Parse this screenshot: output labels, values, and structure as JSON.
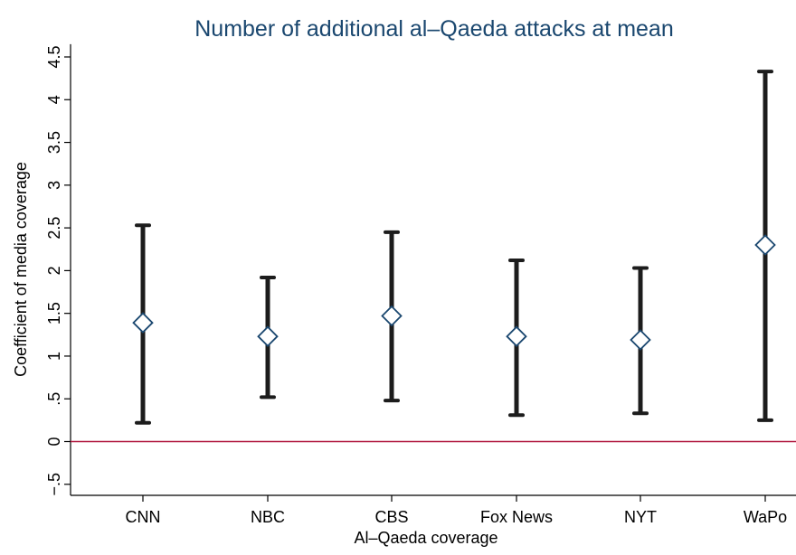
{
  "chart_data": {
    "type": "scatter",
    "title": "Number of additional al–Qaeda attacks at mean",
    "xlabel": "Al–Qaeda coverage",
    "ylabel": "Coefficient of media coverage",
    "categories": [
      "CNN",
      "NBC",
      "CBS",
      "Fox News",
      "NYT",
      "WaPo"
    ],
    "series": [
      {
        "estimate": [
          1.39,
          1.23,
          1.47,
          1.23,
          1.19,
          2.3
        ],
        "ci_lower": [
          0.22,
          0.52,
          0.48,
          0.31,
          0.33,
          0.25
        ],
        "ci_upper": [
          2.53,
          1.92,
          2.45,
          2.12,
          2.03,
          4.33
        ]
      }
    ],
    "ylim": [
      -0.7,
      4.65
    ],
    "yticks": [
      -0.5,
      0,
      0.5,
      1,
      1.5,
      2,
      2.5,
      3,
      3.5,
      4,
      4.5
    ],
    "ytick_labels": [
      "−.5",
      "0",
      ".5",
      "1",
      "1.5",
      "2",
      "2.5",
      "3",
      "3.5",
      "4",
      "4.5"
    ],
    "reference_line": {
      "y": 0
    },
    "grid": false,
    "legend": "none",
    "colors": {
      "title": "#1a476f",
      "marker": "#1a476f",
      "error_bar": "#1c1c1c",
      "reference_line": "#b0173e",
      "axis": "#000000",
      "text": "#000000"
    }
  }
}
